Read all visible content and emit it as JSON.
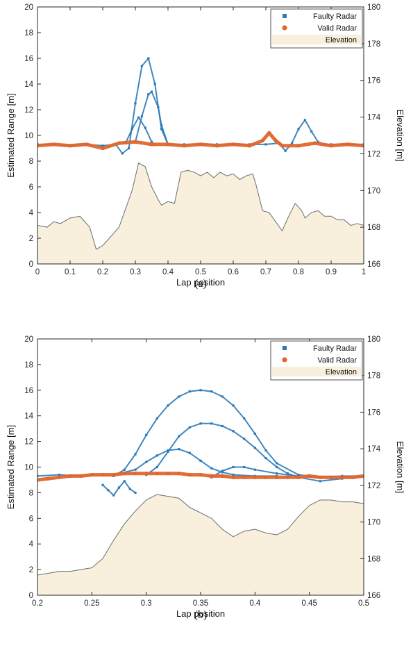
{
  "chart_data": [
    {
      "type": "line",
      "caption": "(a)",
      "xlabel": "Lap position",
      "ylabel": "Estimated Range [m]",
      "y2label": "Elevation [m]",
      "xlim": [
        0,
        1
      ],
      "ylim": [
        0,
        20
      ],
      "y2lim": [
        166,
        180
      ],
      "xticks": [
        "0",
        "0.1",
        "0.2",
        "0.3",
        "0.4",
        "0.5",
        "0.6",
        "0.7",
        "0.8",
        "0.9",
        "1"
      ],
      "yticks": [
        "0",
        "2",
        "4",
        "6",
        "8",
        "10",
        "12",
        "14",
        "16",
        "18",
        "20"
      ],
      "y2ticks": [
        "166",
        "168",
        "170",
        "172",
        "174",
        "176",
        "178",
        "180"
      ],
      "grid": false,
      "legend": {
        "position": "top-right",
        "entries": [
          "Faulty Radar",
          "Valid Radar",
          "Elevation"
        ]
      },
      "colors": {
        "faulty": "#2a7ab9",
        "valid": "#e0662e",
        "elevation_fill": "#f8f0dc",
        "elevation_line": "#777777"
      },
      "series": [
        {
          "name": "Elevation",
          "axis": "right",
          "style": "area",
          "x": [
            0,
            0.03,
            0.05,
            0.07,
            0.1,
            0.13,
            0.16,
            0.18,
            0.2,
            0.23,
            0.25,
            0.27,
            0.29,
            0.31,
            0.33,
            0.35,
            0.37,
            0.38,
            0.4,
            0.42,
            0.44,
            0.46,
            0.48,
            0.5,
            0.52,
            0.54,
            0.56,
            0.58,
            0.6,
            0.62,
            0.64,
            0.66,
            0.67,
            0.69,
            0.71,
            0.73,
            0.75,
            0.77,
            0.79,
            0.81,
            0.82,
            0.84,
            0.86,
            0.88,
            0.9,
            0.92,
            0.94,
            0.96,
            0.98,
            1.0
          ],
          "y": [
            168.1,
            168.0,
            168.3,
            168.2,
            168.5,
            168.6,
            168.0,
            166.8,
            167.0,
            167.6,
            168.0,
            169.0,
            170.0,
            171.5,
            171.3,
            170.2,
            169.5,
            169.2,
            169.4,
            169.3,
            171.0,
            171.1,
            171.0,
            170.8,
            171.0,
            170.7,
            171.0,
            170.8,
            170.9,
            170.6,
            170.8,
            170.9,
            170.3,
            168.9,
            168.8,
            168.3,
            167.8,
            168.6,
            169.3,
            168.9,
            168.5,
            168.8,
            168.9,
            168.6,
            168.6,
            168.4,
            168.4,
            168.1,
            168.2,
            168.1
          ]
        },
        {
          "name": "Faulty Radar",
          "axis": "left",
          "style": "markers",
          "x": [
            0.0,
            0.05,
            0.1,
            0.15,
            0.2,
            0.24,
            0.26,
            0.28,
            0.3,
            0.32,
            0.34,
            0.36,
            0.38,
            0.4,
            0.45,
            0.5,
            0.55,
            0.6,
            0.65,
            0.7,
            0.74,
            0.76,
            0.78,
            0.8,
            0.82,
            0.84,
            0.86,
            0.88,
            0.9,
            0.95,
            1.0
          ],
          "y": [
            9.3,
            9.3,
            9.2,
            9.3,
            9.2,
            9.3,
            8.6,
            9.0,
            12.5,
            15.4,
            16.0,
            14.0,
            10.5,
            9.3,
            9.3,
            9.3,
            9.3,
            9.3,
            9.3,
            9.3,
            9.4,
            8.8,
            9.4,
            10.5,
            11.2,
            10.3,
            9.5,
            9.3,
            9.3,
            9.3,
            9.3
          ]
        },
        {
          "name": "Faulty Radar",
          "axis": "left",
          "style": "markers",
          "x": [
            0.3,
            0.32,
            0.34,
            0.35,
            0.37,
            0.38,
            0.4
          ],
          "y": [
            9.5,
            11.5,
            13.2,
            13.4,
            12.2,
            10.8,
            9.3
          ]
        },
        {
          "name": "Faulty Radar",
          "axis": "left",
          "style": "markers",
          "x": [
            0.27,
            0.29,
            0.31,
            0.33,
            0.35
          ],
          "y": [
            9.4,
            10.5,
            11.4,
            10.6,
            9.5
          ]
        },
        {
          "name": "Valid Radar",
          "axis": "left",
          "style": "markers",
          "x": [
            0.0,
            0.05,
            0.1,
            0.15,
            0.2,
            0.25,
            0.3,
            0.35,
            0.4,
            0.45,
            0.5,
            0.55,
            0.6,
            0.65,
            0.69,
            0.71,
            0.73,
            0.75,
            0.8,
            0.85,
            0.9,
            0.95,
            1.0
          ],
          "y": [
            9.2,
            9.3,
            9.2,
            9.3,
            9.0,
            9.4,
            9.5,
            9.3,
            9.3,
            9.2,
            9.3,
            9.2,
            9.3,
            9.2,
            9.6,
            10.2,
            9.6,
            9.2,
            9.2,
            9.4,
            9.2,
            9.3,
            9.2
          ]
        }
      ]
    },
    {
      "type": "line",
      "caption": "(b)",
      "xlabel": "Lap position",
      "ylabel": "Estimated Range [m]",
      "y2label": "Elevation [m]",
      "xlim": [
        0.2,
        0.5
      ],
      "ylim": [
        0,
        20
      ],
      "y2lim": [
        166,
        180
      ],
      "xticks": [
        "0.2",
        "0.25",
        "0.3",
        "0.35",
        "0.4",
        "0.45",
        "0.5"
      ],
      "yticks": [
        "0",
        "2",
        "4",
        "6",
        "8",
        "10",
        "12",
        "14",
        "16",
        "18",
        "20"
      ],
      "y2ticks": [
        "166",
        "168",
        "170",
        "172",
        "174",
        "176",
        "178",
        "180"
      ],
      "grid": false,
      "legend": {
        "position": "top-right",
        "entries": [
          "Faulty Radar",
          "Valid Radar",
          "Elevation"
        ]
      },
      "colors": {
        "faulty": "#2a7ab9",
        "valid": "#e0662e",
        "elevation_fill": "#f8f0dc",
        "elevation_line": "#777777"
      },
      "series": [
        {
          "name": "Elevation",
          "axis": "right",
          "style": "area",
          "x": [
            0.2,
            0.21,
            0.22,
            0.23,
            0.24,
            0.25,
            0.26,
            0.27,
            0.28,
            0.29,
            0.3,
            0.31,
            0.32,
            0.33,
            0.34,
            0.35,
            0.36,
            0.37,
            0.38,
            0.39,
            0.4,
            0.41,
            0.42,
            0.43,
            0.44,
            0.45,
            0.46,
            0.47,
            0.48,
            0.49,
            0.5
          ],
          "y": [
            167.1,
            167.2,
            167.3,
            167.3,
            167.4,
            167.5,
            168.0,
            169.0,
            169.9,
            170.6,
            171.2,
            171.5,
            171.4,
            171.3,
            170.8,
            170.5,
            170.2,
            169.6,
            169.2,
            169.5,
            169.6,
            169.4,
            169.3,
            169.6,
            170.3,
            170.9,
            171.2,
            171.2,
            171.1,
            171.1,
            171.0
          ]
        },
        {
          "name": "Faulty Radar",
          "axis": "left",
          "style": "markers",
          "x": [
            0.2,
            0.22,
            0.24,
            0.26,
            0.27,
            0.28,
            0.29,
            0.3,
            0.31,
            0.32,
            0.33,
            0.34,
            0.35,
            0.36,
            0.37,
            0.38,
            0.39,
            0.4,
            0.41,
            0.42,
            0.44,
            0.46,
            0.48,
            0.5
          ],
          "y": [
            9.3,
            9.4,
            9.3,
            9.4,
            9.3,
            9.8,
            11.0,
            12.5,
            13.8,
            14.8,
            15.5,
            15.9,
            16.0,
            15.9,
            15.5,
            14.8,
            13.8,
            12.6,
            11.3,
            10.3,
            9.4,
            9.2,
            9.3,
            9.3
          ]
        },
        {
          "name": "Faulty Radar",
          "axis": "left",
          "style": "markers",
          "x": [
            0.3,
            0.31,
            0.32,
            0.33,
            0.34,
            0.35,
            0.36,
            0.37,
            0.38,
            0.39,
            0.4,
            0.41,
            0.42,
            0.43,
            0.44,
            0.46,
            0.48,
            0.5
          ],
          "y": [
            9.4,
            10.0,
            11.2,
            12.4,
            13.1,
            13.4,
            13.4,
            13.2,
            12.8,
            12.2,
            11.5,
            10.7,
            10.0,
            9.5,
            9.2,
            8.9,
            9.1,
            9.3
          ]
        },
        {
          "name": "Faulty Radar",
          "axis": "left",
          "style": "markers",
          "x": [
            0.27,
            0.29,
            0.3,
            0.31,
            0.32,
            0.33,
            0.34,
            0.35,
            0.36,
            0.37,
            0.38,
            0.4,
            0.42
          ],
          "y": [
            9.4,
            9.8,
            10.4,
            10.9,
            11.3,
            11.4,
            11.1,
            10.5,
            9.9,
            9.6,
            9.4,
            9.3,
            9.3
          ]
        },
        {
          "name": "Faulty Radar",
          "axis": "left",
          "style": "markers",
          "x": [
            0.36,
            0.37,
            0.38,
            0.39,
            0.4,
            0.42,
            0.44
          ],
          "y": [
            9.2,
            9.7,
            10.0,
            10.0,
            9.8,
            9.5,
            9.3
          ]
        },
        {
          "name": "Faulty Radar",
          "axis": "left",
          "style": "markers",
          "x": [
            0.26,
            0.265,
            0.27,
            0.275,
            0.28,
            0.285,
            0.29
          ],
          "y": [
            8.6,
            8.2,
            7.8,
            8.4,
            8.9,
            8.3,
            8.0
          ]
        },
        {
          "name": "Valid Radar",
          "axis": "left",
          "style": "markers",
          "x": [
            0.2,
            0.21,
            0.22,
            0.23,
            0.24,
            0.25,
            0.26,
            0.27,
            0.28,
            0.29,
            0.3,
            0.31,
            0.32,
            0.33,
            0.34,
            0.35,
            0.36,
            0.37,
            0.38,
            0.39,
            0.4,
            0.41,
            0.42,
            0.43,
            0.44,
            0.45,
            0.46,
            0.47,
            0.48,
            0.49,
            0.5
          ],
          "y": [
            9.0,
            9.1,
            9.2,
            9.3,
            9.3,
            9.4,
            9.4,
            9.4,
            9.5,
            9.5,
            9.5,
            9.5,
            9.5,
            9.5,
            9.4,
            9.4,
            9.3,
            9.3,
            9.2,
            9.2,
            9.2,
            9.2,
            9.2,
            9.2,
            9.2,
            9.3,
            9.2,
            9.2,
            9.2,
            9.2,
            9.3
          ]
        }
      ]
    }
  ]
}
